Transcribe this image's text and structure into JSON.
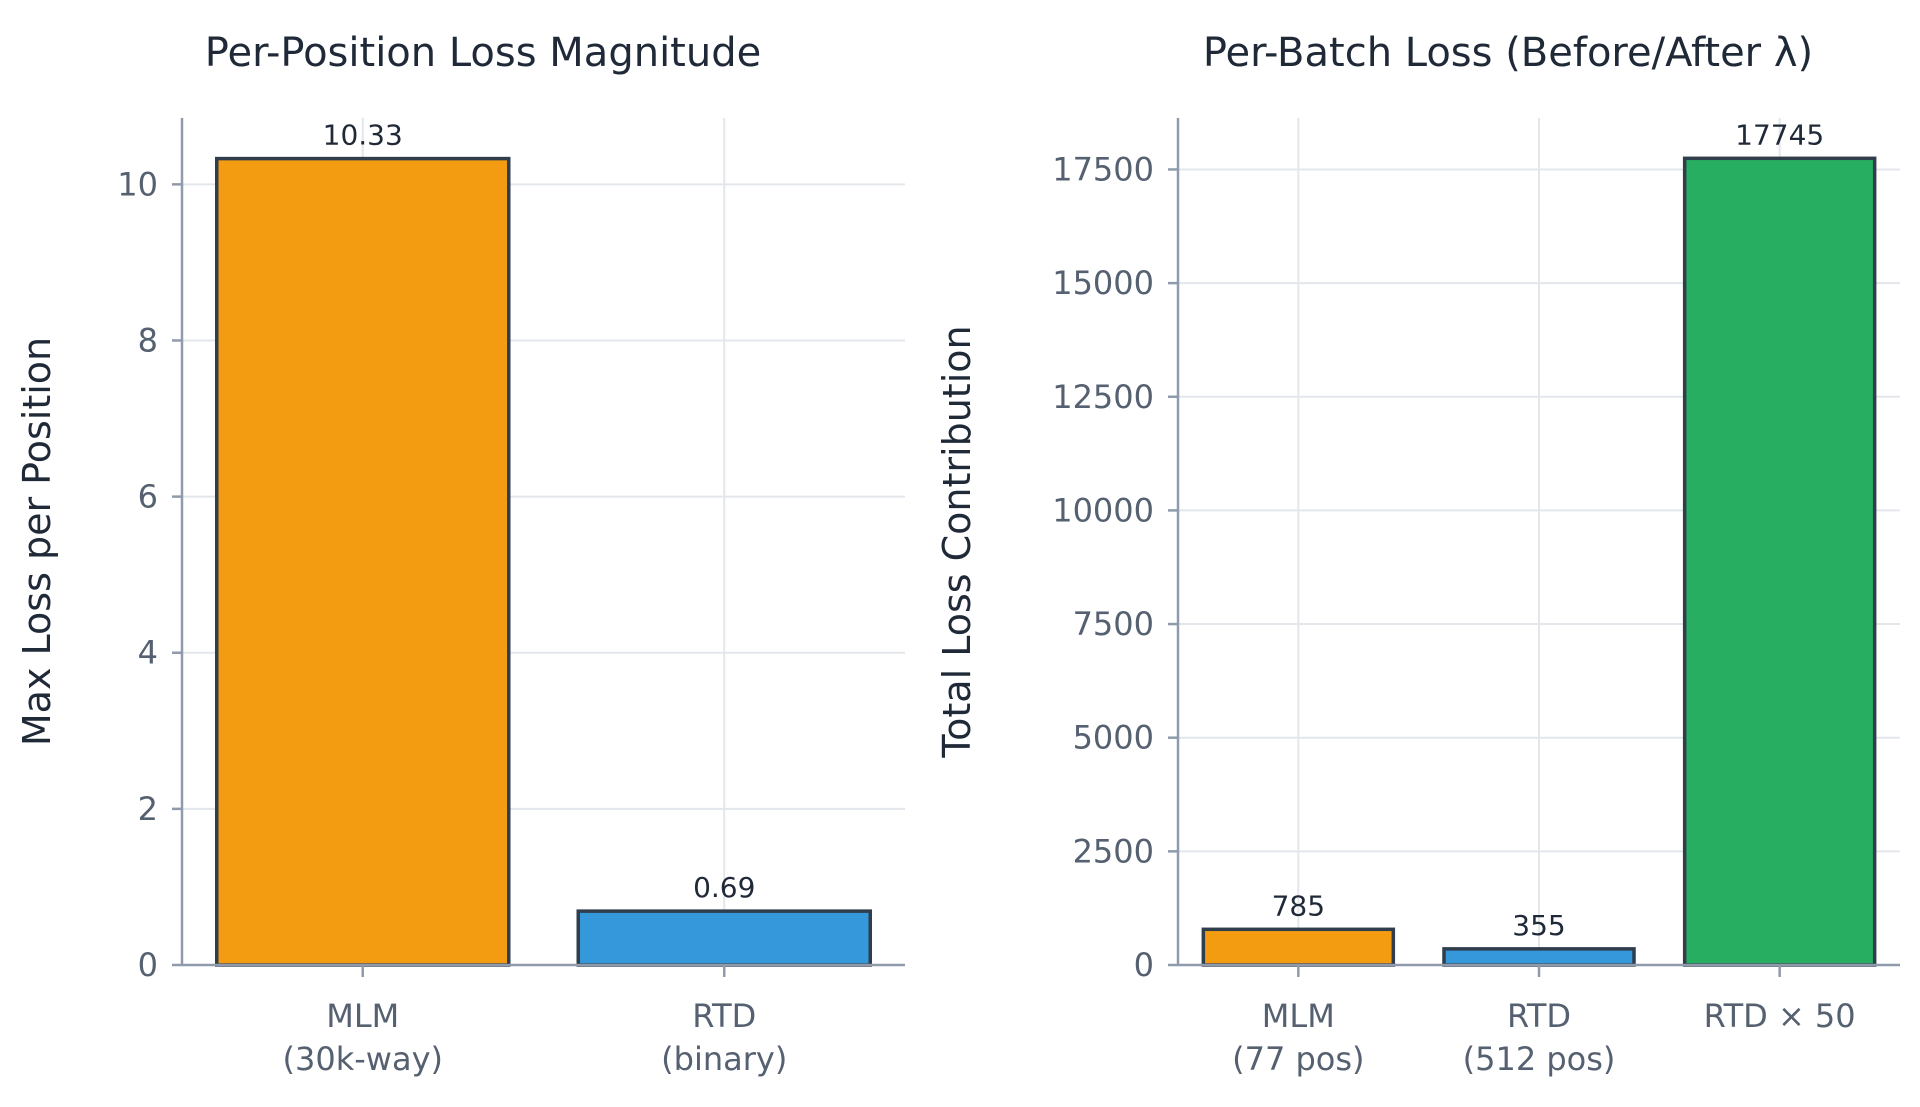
{
  "chart_data": [
    {
      "type": "bar",
      "title": "Per-Position Loss Magnitude",
      "xlabel": "",
      "ylabel": "Max Loss per Position",
      "categories": [
        [
          "MLM",
          "(30k-way)"
        ],
        [
          "RTD",
          "(binary)"
        ]
      ],
      "values": [
        10.33,
        0.69
      ],
      "value_labels": [
        "10.33",
        "0.69"
      ],
      "colors": [
        "#f39c12",
        "#3498db"
      ],
      "ylim": [
        0,
        10.85
      ],
      "yticks": [
        0,
        2,
        4,
        6,
        8,
        10
      ],
      "ytick_labels": [
        "0",
        "2",
        "4",
        "6",
        "8",
        "10"
      ],
      "grid": true
    },
    {
      "type": "bar",
      "title": "Per-Batch Loss (Before/After λ)",
      "xlabel": "",
      "ylabel": "Total Loss Contribution",
      "categories": [
        [
          "MLM",
          "(77 pos)"
        ],
        [
          "RTD",
          "(512 pos)"
        ],
        [
          "RTD × 50"
        ]
      ],
      "values": [
        785,
        355,
        17745
      ],
      "value_labels": [
        "785",
        "355",
        "17745"
      ],
      "colors": [
        "#f39c12",
        "#3498db",
        "#27ae60"
      ],
      "ylim": [
        0,
        18632
      ],
      "yticks": [
        0,
        2500,
        5000,
        7500,
        10000,
        12500,
        15000,
        17500
      ],
      "ytick_labels": [
        "0",
        "2500",
        "5000",
        "7500",
        "10000",
        "12500",
        "15000",
        "17500"
      ],
      "grid": true
    }
  ]
}
